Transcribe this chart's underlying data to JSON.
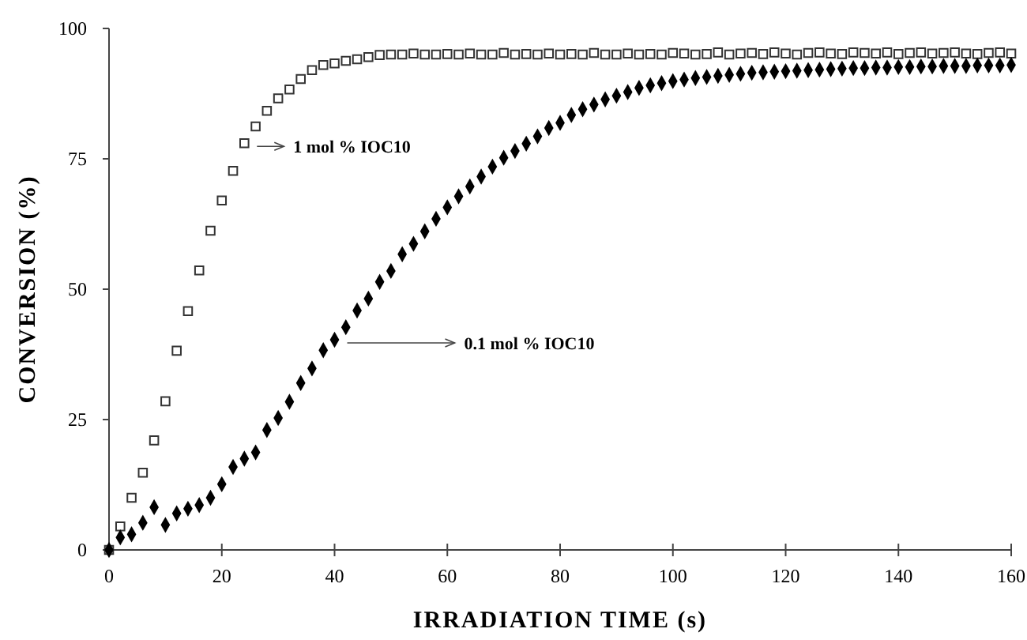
{
  "chart_data": {
    "type": "scatter",
    "xlabel": "IRRADIATION TIME (s)",
    "ylabel": "CONVERSION (%)",
    "x": [
      0,
      2,
      4,
      6,
      8,
      10,
      12,
      14,
      16,
      18,
      20,
      22,
      24,
      26,
      28,
      30,
      32,
      34,
      36,
      38,
      40,
      42,
      44,
      46,
      48,
      50,
      52,
      54,
      56,
      58,
      60,
      62,
      64,
      66,
      68,
      70,
      72,
      74,
      76,
      78,
      80,
      82,
      84,
      86,
      88,
      90,
      92,
      94,
      96,
      98,
      100,
      102,
      104,
      106,
      108,
      110,
      112,
      114,
      116,
      118,
      120,
      122,
      124,
      126,
      128,
      130,
      132,
      134,
      136,
      138,
      140,
      142,
      144,
      146,
      148,
      150,
      152,
      154,
      156,
      158,
      160
    ],
    "xlim": [
      0,
      160
    ],
    "xticks": [
      0,
      20,
      40,
      60,
      80,
      100,
      120,
      140,
      160
    ],
    "ylim": [
      0,
      100
    ],
    "yticks": [
      0,
      25,
      50,
      75,
      100
    ],
    "grid": false,
    "legend": false,
    "series": [
      {
        "name": "1 mol % IOC10",
        "color": "#333333",
        "marker": "square",
        "values": [
          0,
          4.5,
          10,
          14.8,
          21,
          28.5,
          38.2,
          45.8,
          53.6,
          61.2,
          67,
          72.7,
          78,
          81.2,
          84.2,
          86.6,
          88.3,
          90.3,
          92,
          93,
          93.3,
          93.8,
          94.1,
          94.5,
          94.9,
          95,
          95,
          95.2,
          95,
          95,
          95.1,
          95,
          95.2,
          95,
          95,
          95.3,
          95,
          95.1,
          95,
          95.2,
          95,
          95.1,
          95,
          95.3,
          95,
          95,
          95.2,
          95,
          95.1,
          95,
          95.3,
          95.2,
          95,
          95.1,
          95.4,
          95,
          95.2,
          95.3,
          95.1,
          95.4,
          95.2,
          95,
          95.3,
          95.4,
          95.2,
          95.1,
          95.4,
          95.3,
          95.2,
          95.4,
          95.1,
          95.3,
          95.4,
          95.2,
          95.3,
          95.4,
          95.2,
          95.1,
          95.3,
          95.4,
          95.2
        ]
      },
      {
        "name": "0.1 mol % IOC10",
        "color": "#000000",
        "marker": "diamond",
        "values": [
          0,
          2.4,
          3,
          5.2,
          8.2,
          4.8,
          7,
          7.9,
          8.6,
          10,
          12.6,
          15.9,
          17.5,
          18.7,
          23,
          25.3,
          28.4,
          32,
          34.8,
          38.3,
          40.3,
          42.7,
          45.9,
          48.2,
          51.4,
          53.5,
          56.7,
          58.7,
          61.1,
          63.5,
          65.7,
          67.8,
          69.7,
          71.6,
          73.5,
          75.2,
          76.5,
          77.9,
          79.3,
          80.9,
          81.9,
          83.4,
          84.5,
          85.4,
          86.4,
          87.1,
          87.8,
          88.6,
          89.1,
          89.5,
          89.9,
          90.2,
          90.5,
          90.7,
          90.9,
          91.1,
          91.3,
          91.5,
          91.6,
          91.7,
          91.8,
          91.9,
          92,
          92.1,
          92.2,
          92.3,
          92.4,
          92.4,
          92.5,
          92.5,
          92.6,
          92.6,
          92.7,
          92.7,
          92.8,
          92.8,
          92.8,
          92.9,
          92.9,
          92.9,
          93
        ]
      }
    ]
  }
}
